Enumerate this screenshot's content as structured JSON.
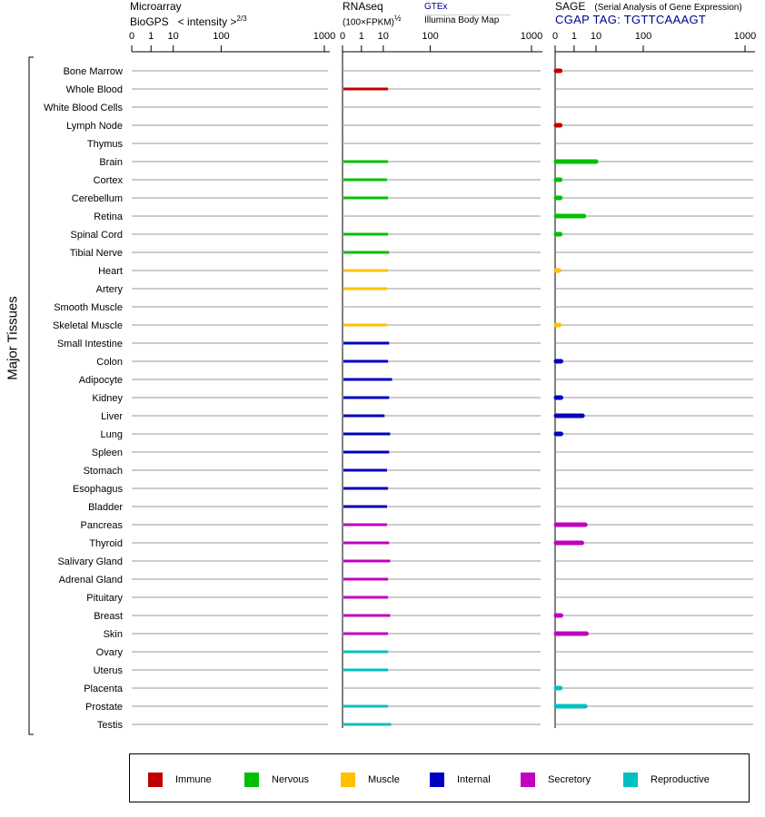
{
  "panels": {
    "microarray": {
      "title_line1": "Microarray",
      "title_line2": "BioGPS",
      "subtitle": "< intensity >",
      "exponent": "2/3"
    },
    "rnaseq": {
      "title": "RNAseq",
      "subtitle": "(100×FPKM)",
      "exponent": "½",
      "source_top": "GTEx",
      "source_bottom": "Illumina Body Map"
    },
    "sage": {
      "title": "SAGE",
      "subtitle": "(Serial Analysis of Gene Expression)",
      "tag_label": "CGAP TAG: TGTTCAAAGT"
    }
  },
  "legend": [
    {
      "key": "immune",
      "label": "Immune",
      "color": "#c00000"
    },
    {
      "key": "nervous",
      "label": "Nervous",
      "color": "#00c000"
    },
    {
      "key": "muscle",
      "label": "Muscle",
      "color": "#ffc000"
    },
    {
      "key": "internal",
      "label": "Internal",
      "color": "#0000c0"
    },
    {
      "key": "secretory",
      "label": "Secretory",
      "color": "#c000c0"
    },
    {
      "key": "reproductive",
      "label": "Reproductive",
      "color": "#00c0c0"
    }
  ],
  "chart_data": {
    "type": "bar",
    "orientation": "horizontal",
    "y_axis_title": "Major Tissues",
    "x_scale": "power",
    "x_ticks": [
      "0",
      "1",
      "10",
      "100",
      "1000"
    ],
    "xlim": [
      0,
      1000
    ],
    "categories": [
      "Bone Marrow",
      "Whole Blood",
      "White Blood Cells",
      "Lymph Node",
      "Thymus",
      "Brain",
      "Cortex",
      "Cerebellum",
      "Retina",
      "Spinal Cord",
      "Tibial Nerve",
      "Heart",
      "Artery",
      "Smooth Muscle",
      "Skeletal Muscle",
      "Small Intestine",
      "Colon",
      "Adipocyte",
      "Kidney",
      "Liver",
      "Lung",
      "Spleen",
      "Stomach",
      "Esophagus",
      "Bladder",
      "Pancreas",
      "Thyroid",
      "Salivary Gland",
      "Adrenal Gland",
      "Pituitary",
      "Breast",
      "Skin",
      "Ovary",
      "Uterus",
      "Placenta",
      "Prostate",
      "Testis"
    ],
    "groups": [
      "immune",
      "immune",
      "immune",
      "immune",
      "immune",
      "nervous",
      "nervous",
      "nervous",
      "nervous",
      "nervous",
      "nervous",
      "muscle",
      "muscle",
      "muscle",
      "muscle",
      "internal",
      "internal",
      "internal",
      "internal",
      "internal",
      "internal",
      "internal",
      "internal",
      "internal",
      "internal",
      "secretory",
      "secretory",
      "secretory",
      "secretory",
      "secretory",
      "secretory",
      "secretory",
      "reproductive",
      "reproductive",
      "reproductive",
      "reproductive",
      "reproductive"
    ],
    "series": [
      {
        "name": "Microarray BioGPS",
        "values": [
          null,
          null,
          null,
          null,
          null,
          null,
          null,
          null,
          null,
          null,
          null,
          null,
          null,
          null,
          null,
          null,
          null,
          null,
          null,
          null,
          null,
          null,
          null,
          null,
          null,
          null,
          null,
          null,
          null,
          null,
          null,
          null,
          null,
          null,
          null,
          null,
          null
        ]
      },
      {
        "name": "RNAseq",
        "values": [
          null,
          14,
          null,
          null,
          null,
          14,
          13,
          14,
          null,
          14,
          15,
          14,
          13,
          null,
          13,
          15,
          14,
          18,
          15,
          11,
          16,
          15,
          13,
          14,
          13,
          13,
          15,
          16,
          14,
          14,
          16,
          14,
          14,
          14,
          null,
          14,
          17
        ]
      },
      {
        "name": "SAGE",
        "values": [
          0.02,
          null,
          null,
          0.02,
          null,
          10,
          0.02,
          0.02,
          3.5,
          0.02,
          null,
          0.01,
          null,
          null,
          0.01,
          null,
          0.03,
          null,
          0.03,
          3,
          0.03,
          null,
          null,
          null,
          null,
          4,
          2.8,
          null,
          null,
          null,
          0.03,
          4.5,
          null,
          null,
          0.02,
          4,
          null
        ]
      }
    ]
  }
}
